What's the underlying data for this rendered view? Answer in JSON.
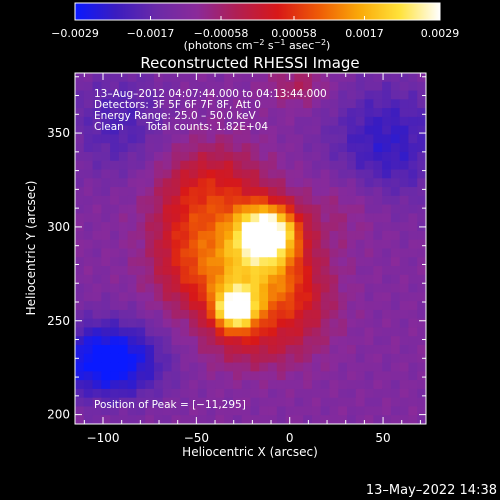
{
  "chart_data": {
    "type": "heatmap",
    "title": "Reconstructed RHESSI Image",
    "xlabel": "Heliocentric X (arcsec)",
    "ylabel": "Heliocentric Y (arcsec)",
    "xlim": [
      -115,
      73
    ],
    "ylim": [
      195,
      382
    ],
    "x_ticks": [
      -100,
      -50,
      0,
      50
    ],
    "x_tick_labels": [
      "−100",
      "−50",
      "0",
      "50"
    ],
    "y_ticks": [
      200,
      250,
      300,
      350
    ],
    "y_tick_labels": [
      "200",
      "250",
      "300",
      "350"
    ],
    "colorbar": {
      "min": -0.0029,
      "max": 0.0029,
      "ticks": [
        -0.0029,
        -0.0017,
        -0.00058,
        0.00058,
        0.0017,
        0.0029
      ],
      "tick_labels": [
        "−0.0029",
        "−0.0017",
        "−0.00058",
        "0.00058",
        "0.0017",
        "0.0029"
      ],
      "unit_parts": [
        "(photons cm",
        "−2",
        " s",
        "−1",
        " asec",
        "−2",
        ")"
      ],
      "colors": [
        "#0a1aff",
        "#3a1cc0",
        "#6a2aa8",
        "#8a2a9a",
        "#b11e52",
        "#d81818",
        "#ee5a06",
        "#faa808",
        "#ffe23a",
        "#ffffff"
      ]
    },
    "annotation_lines": [
      "13–Aug–2012 04:07:44.000 to 04:13:44.000",
      "Detectors: 3F 5F 6F 7F 8F, Att 0",
      "Energy Range: 25.0 – 50.0 keV"
    ],
    "clean_label": "Clean",
    "total_counts_label": "Total counts: 1.82E+04",
    "peak_label": "Position of Peak = [−11,295]",
    "sources": [
      {
        "x": -12,
        "y": 297,
        "sx": 11,
        "sy": 10,
        "amp": 1.0
      },
      {
        "x": -29,
        "y": 256,
        "sx": 8,
        "sy": 8,
        "amp": 0.82
      },
      {
        "x": -18,
        "y": 274,
        "sx": 20,
        "sy": 17,
        "amp": 0.42
      },
      {
        "x": -36,
        "y": 288,
        "sx": 22,
        "sy": 26,
        "amp": 0.32
      },
      {
        "x": -42,
        "y": 323,
        "sx": 20,
        "sy": 16,
        "amp": 0.24
      },
      {
        "x": 3,
        "y": 258,
        "sx": 16,
        "sy": 18,
        "amp": 0.22
      },
      {
        "x": -57,
        "y": 288,
        "sx": 14,
        "sy": 22,
        "amp": 0.18
      },
      {
        "x": -21,
        "y": 236,
        "sx": 18,
        "sy": 10,
        "amp": 0.16
      },
      {
        "x": 28,
        "y": 310,
        "sx": 16,
        "sy": 14,
        "amp": 0.12
      },
      {
        "x": 5,
        "y": 375,
        "sx": 12,
        "sy": 8,
        "amp": 0.18
      }
    ],
    "negative_regions": [
      {
        "x": -97,
        "y": 229,
        "sx": 20,
        "sy": 14,
        "amp": 0.36
      },
      {
        "x": 52,
        "y": 345,
        "sx": 22,
        "sy": 22,
        "amp": 0.2
      },
      {
        "x": -92,
        "y": 355,
        "sx": 18,
        "sy": 20,
        "amp": 0.14
      }
    ]
  },
  "footer": {
    "timestamp": "13–May–2022 14:38"
  }
}
